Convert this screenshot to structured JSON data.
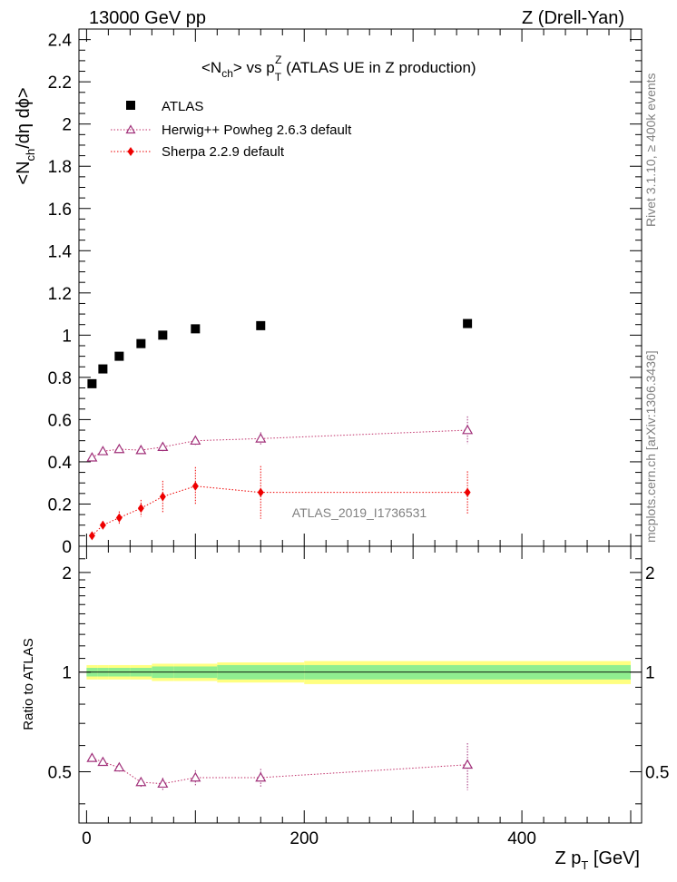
{
  "header": {
    "left": "13000 GeV pp",
    "right": "Z (Drell-Yan)"
  },
  "title": {
    "prefix": "<N",
    "prefix_sub": "ch",
    "middle": "> vs p",
    "z_sup": "Z",
    "t_sub": "T",
    "suffix": " (ATLAS UE in Z production)"
  },
  "side_text": {
    "rivet": "Rivet 3.1.10, ≥ 400k events",
    "mcplots": "mcplots.cern.ch [arXiv:1306.3436]"
  },
  "watermark": "ATLAS_2019_I1736531",
  "axes": {
    "ylabel_main": {
      "a": "<N",
      "a_sub": "ch",
      "b": "/dη dϕ>"
    },
    "ylabel_ratio": "Ratio to ATLAS",
    "xlabel": {
      "a": "Z p",
      "a_sub": "T",
      "b": " [GeV]"
    },
    "main_yticks": [
      "0",
      "0.2",
      "0.4",
      "0.6",
      "0.8",
      "1",
      "1.2",
      "1.4",
      "1.6",
      "1.8",
      "2",
      "2.2",
      "2.4"
    ],
    "ratio_yticks": [
      "0.5",
      "1",
      "2"
    ],
    "xticks": [
      "0",
      "200",
      "400"
    ]
  },
  "legend": {
    "atlas": "ATLAS",
    "herwig": "Herwig++ Powheg 2.6.3 default",
    "sherpa": "Sherpa 2.2.9 default"
  },
  "colors": {
    "atlas": "#000000",
    "herwig": "#a0307a",
    "herwig_line": "#c0306a",
    "sherpa": "#ee0000",
    "band_inner": "#90ee90",
    "band_outer": "#ffff80"
  },
  "chart_data": {
    "type": "scatter",
    "x_range": [
      -7,
      510
    ],
    "main_ylim": [
      0,
      2.45
    ],
    "ratio_ylim": [
      0.35,
      2.4
    ],
    "ratio_scale": "log",
    "x": [
      5,
      15,
      30,
      50,
      70,
      100,
      160,
      350
    ],
    "x_bins": [
      [
        0,
        10
      ],
      [
        10,
        20
      ],
      [
        20,
        40
      ],
      [
        40,
        60
      ],
      [
        60,
        80
      ],
      [
        80,
        120
      ],
      [
        120,
        200
      ],
      [
        200,
        500
      ]
    ],
    "series": [
      {
        "name": "ATLAS",
        "marker": "square",
        "values": [
          0.77,
          0.84,
          0.9,
          0.96,
          1.0,
          1.03,
          1.045,
          1.055
        ],
        "rel_err_stat": [
          0.03,
          0.03,
          0.03,
          0.03,
          0.04,
          0.04,
          0.05,
          0.05
        ],
        "rel_err_total": [
          0.05,
          0.05,
          0.05,
          0.05,
          0.06,
          0.06,
          0.07,
          0.08
        ]
      },
      {
        "name": "Herwig++ Powheg 2.6.3 default",
        "marker": "open-triangle",
        "values": [
          0.42,
          0.45,
          0.46,
          0.455,
          0.47,
          0.5,
          0.51,
          0.55
        ],
        "errors": [
          0.01,
          0.01,
          0.015,
          0.015,
          0.02,
          0.02,
          0.03,
          0.065
        ],
        "ratio": [
          0.55,
          0.535,
          0.515,
          0.465,
          0.46,
          0.48,
          0.48,
          0.525
        ],
        "ratio_errors": [
          0.01,
          0.01,
          0.015,
          0.015,
          0.02,
          0.025,
          0.03,
          0.085
        ]
      },
      {
        "name": "Sherpa 2.2.9 default",
        "marker": "filled-diamond",
        "values": [
          0.05,
          0.1,
          0.135,
          0.18,
          0.235,
          0.285,
          0.255,
          0.255
        ],
        "errors": [
          0.015,
          0.02,
          0.03,
          0.04,
          0.075,
          0.09,
          0.125,
          0.1
        ]
      }
    ]
  }
}
